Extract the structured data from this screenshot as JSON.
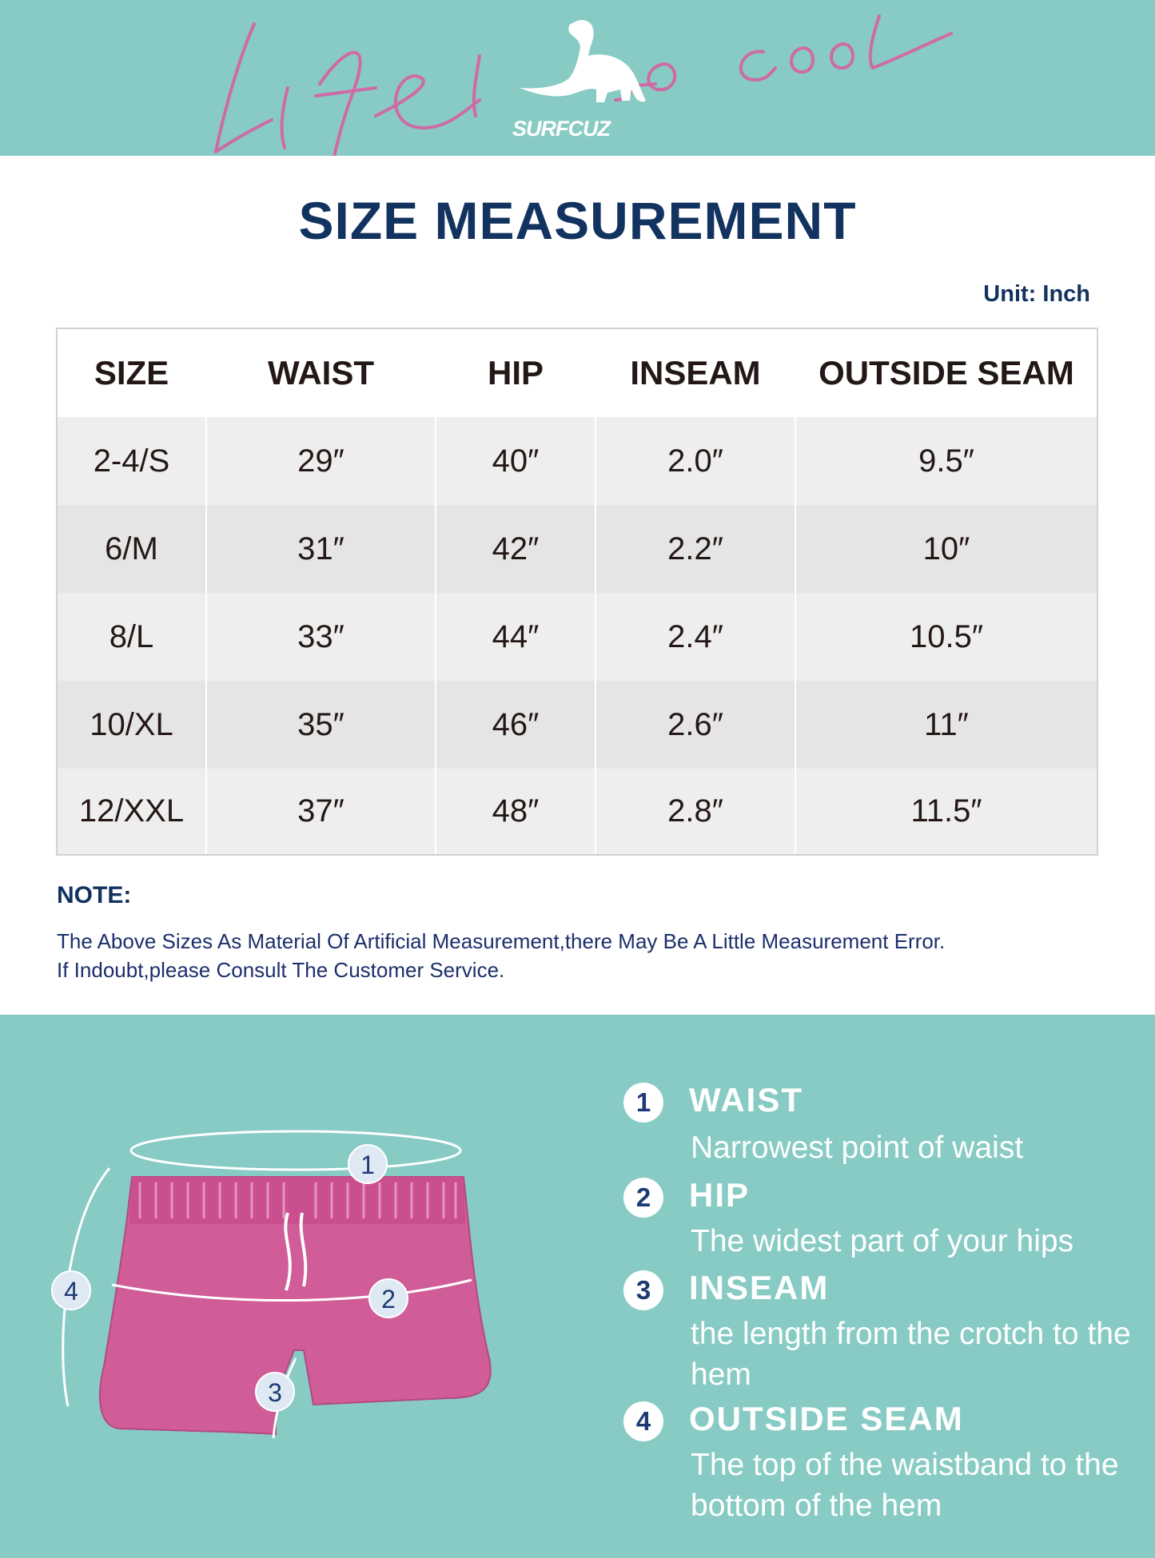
{
  "banner": {
    "script_text": "Life is so cool",
    "brand": "SURFCUZ",
    "bg_color": "#87cbc4",
    "script_color": "#cf6aa5"
  },
  "title": "SIZE MEASUREMENT",
  "unit": "Unit: Inch",
  "table": {
    "headers": [
      "SIZE",
      "WAIST",
      "HIP",
      "INSEAM",
      "OUTSIDE SEAM"
    ],
    "rows": [
      [
        "2-4/S",
        "29″",
        "40″",
        "2.0″",
        "9.5″"
      ],
      [
        "6/M",
        "31″",
        "42″",
        "2.2″",
        "10″"
      ],
      [
        "8/L",
        "33″",
        "44″",
        "2.4″",
        "10.5″"
      ],
      [
        "10/XL",
        "35″",
        "46″",
        "2.6″",
        "11″"
      ],
      [
        "12/XXL",
        "37″",
        "48″",
        "2.8″",
        "11.5″"
      ]
    ]
  },
  "note": {
    "heading": "NOTE:",
    "line1": "The Above Sizes As Material Of Artificial Measurement,there May Be A Little Measurement Error.",
    "line2": "If Indoubt,please Consult The Customer Service."
  },
  "diagram": {
    "shorts_color": "#d05c98",
    "markers": [
      "1",
      "2",
      "3",
      "4"
    ]
  },
  "legend": [
    {
      "num": "1",
      "title": "WAIST",
      "desc": "Narrowest point of waist"
    },
    {
      "num": "2",
      "title": "HIP",
      "desc": "The widest part of your hips"
    },
    {
      "num": "3",
      "title": "INSEAM",
      "desc": "the length from the crotch to the hem"
    },
    {
      "num": "4",
      "title": "OUTSIDE SEAM",
      "desc": "The top of the waistband to the bottom of the hem"
    }
  ]
}
